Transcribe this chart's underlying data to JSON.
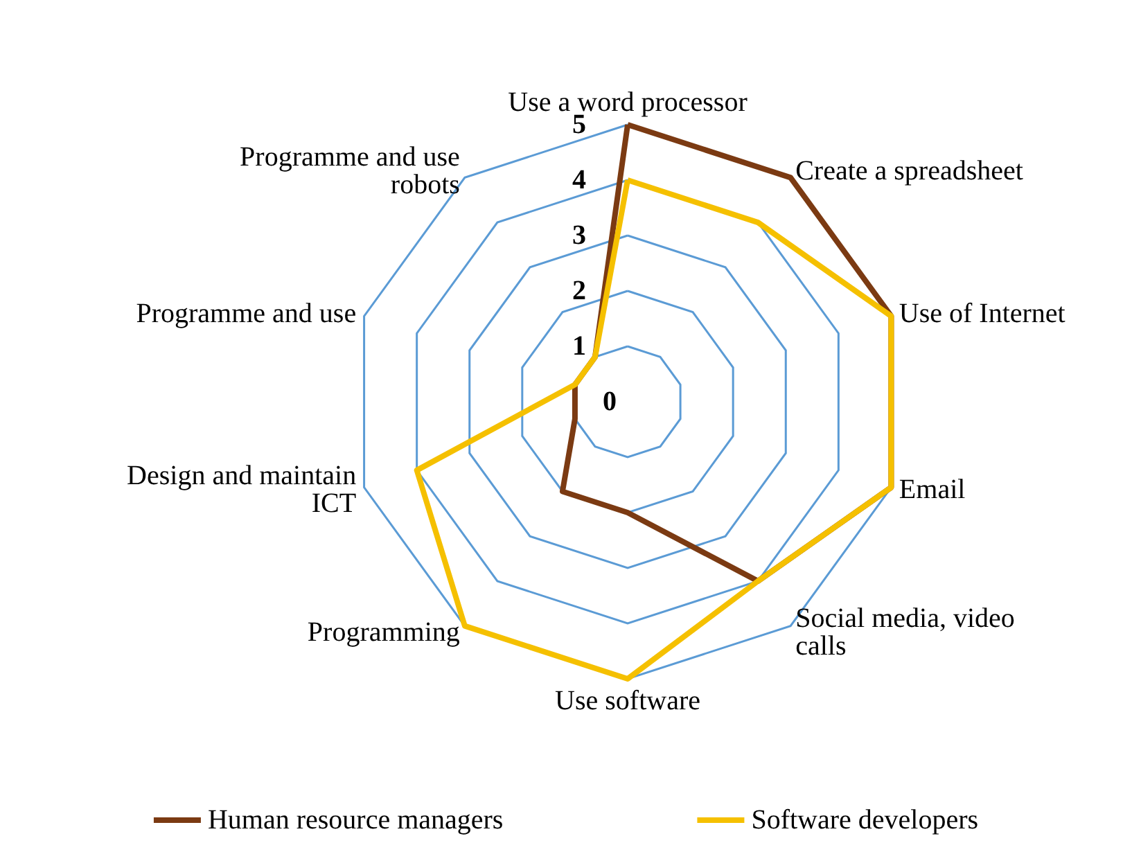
{
  "chart_data": {
    "type": "radar",
    "categories": [
      "Use a word processor",
      "Create a spreadsheet",
      "Use of Internet",
      "Email",
      "Social media, video calls",
      "Use software",
      "Programming",
      "Design and maintain ICT",
      "Programme and use",
      "Programme and use robots"
    ],
    "series": [
      {
        "name": "Human resource managers",
        "color": "#7b3a12",
        "values": [
          5,
          5,
          5,
          5,
          4,
          2,
          2,
          1,
          1,
          1
        ]
      },
      {
        "name": "Software developers",
        "color": "#f5c000",
        "values": [
          4,
          4,
          5,
          5,
          4,
          5,
          5,
          4,
          1,
          1
        ]
      }
    ],
    "ylim": [
      0,
      5
    ],
    "yticks": [
      0,
      1,
      2,
      3,
      4,
      5
    ],
    "grid": true,
    "legend": "bottom",
    "marker": "none"
  }
}
